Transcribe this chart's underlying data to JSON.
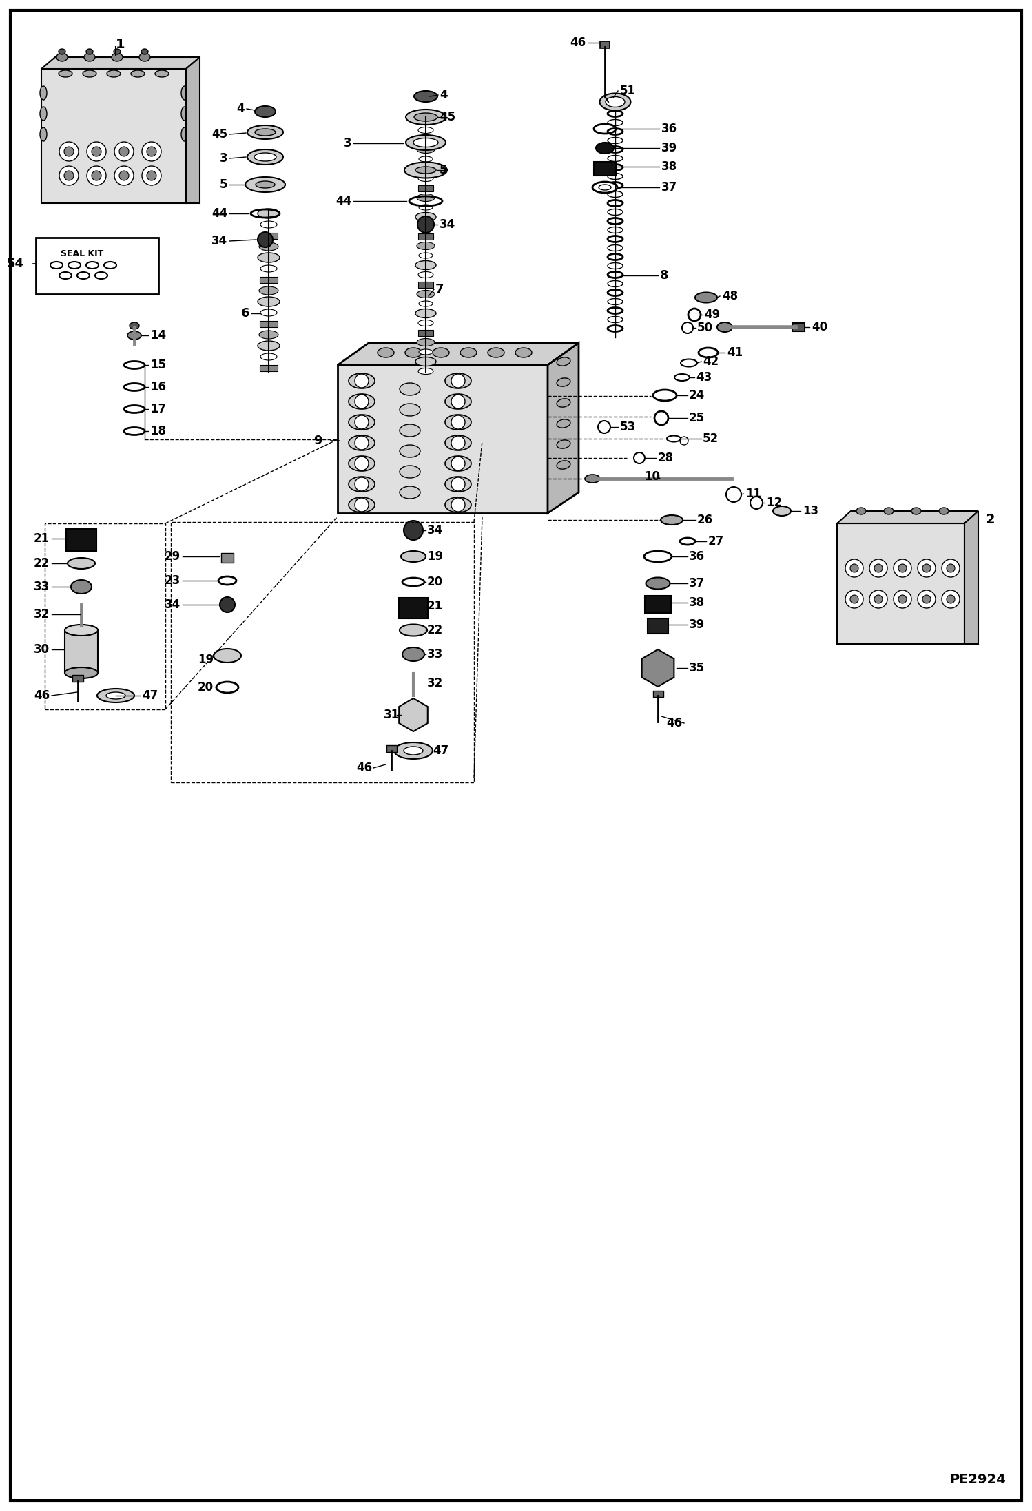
{
  "page_code": "PE2924",
  "background_color": "#ffffff",
  "border_color": "#000000",
  "line_color": "#000000",
  "text_color": "#000000",
  "figsize": [
    14.98,
    21.94
  ],
  "dpi": 100
}
